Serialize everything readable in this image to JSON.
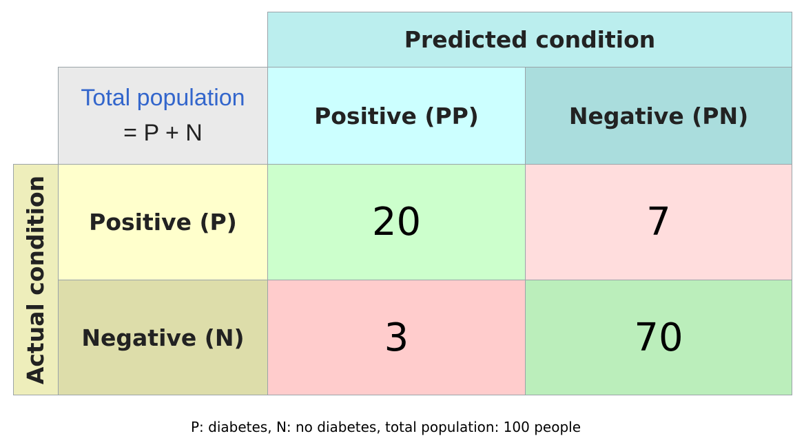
{
  "header": {
    "predicted_condition": "Predicted condition",
    "actual_condition": "Actual condition",
    "total_population_link": "Total population",
    "total_population_formula": "= P + N"
  },
  "columns": {
    "predicted_positive": "Positive (PP)",
    "predicted_negative": "Negative (PN)"
  },
  "rows": {
    "actual_positive": "Positive (P)",
    "actual_negative": "Negative (N)"
  },
  "matrix": {
    "tp": "20",
    "fn": "7",
    "fp": "3",
    "tn": "70"
  },
  "caption": "P: diabetes, N: no diabetes, total population: 100 people",
  "colors": {
    "predicted_header": "#bbeeee",
    "predicted_positive": "#ccffff",
    "predicted_negative": "#aadddd",
    "actual_header": "#eeeebb",
    "actual_positive": "#ffffcc",
    "actual_negative": "#ddddaa",
    "true_positive": "#ccffcc",
    "false_negative": "#ffdddd",
    "false_positive": "#ffcccc",
    "true_negative": "#bbeebb",
    "total_population": "#eaeaea",
    "link": "#3366cc"
  }
}
